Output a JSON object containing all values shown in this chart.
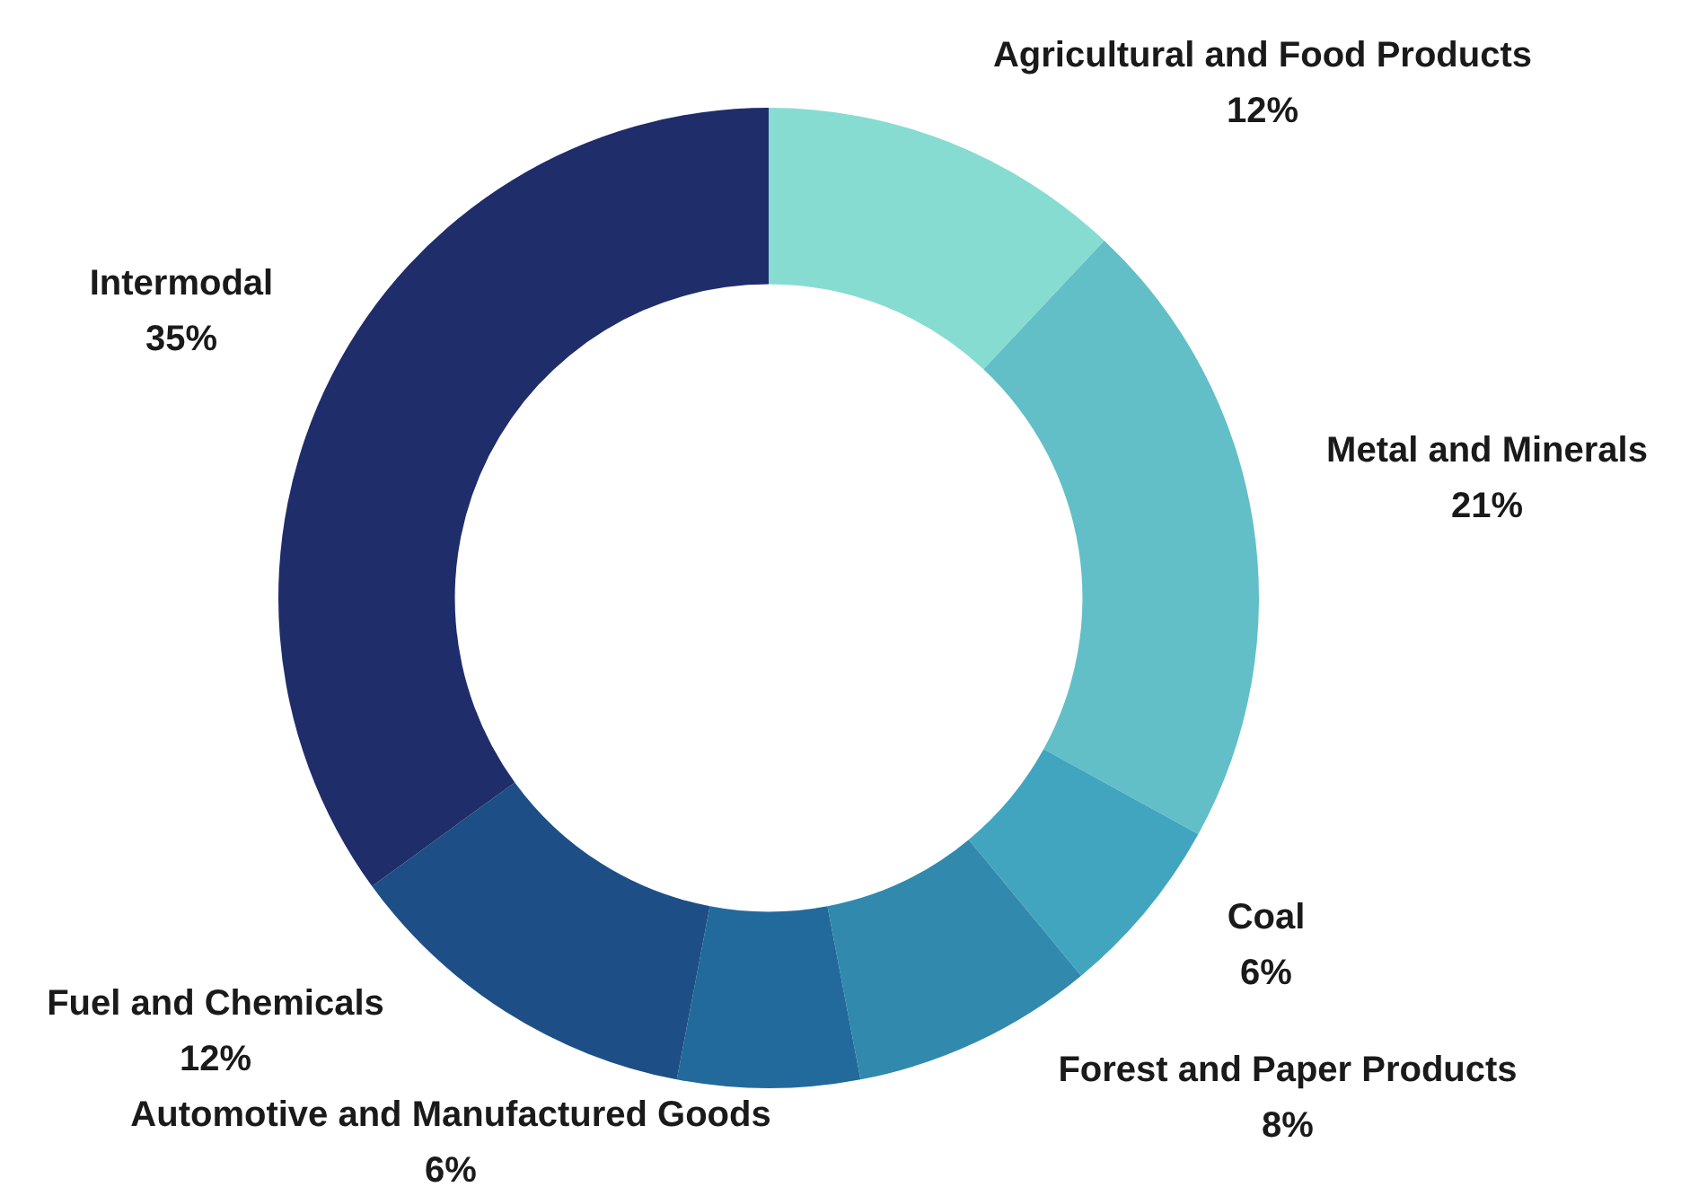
{
  "chart_data": {
    "type": "donut",
    "categories": [
      "Agricultural and Food Products",
      "Metal and Minerals",
      "Coal",
      "Forest and Paper Products",
      "Automotive and Manufactured Goods",
      "Fuel and Chemicals",
      "Intermodal"
    ],
    "values": [
      12,
      21,
      6,
      8,
      6,
      12,
      35
    ],
    "colors": [
      "#87dcd2",
      "#62bfc7",
      "#42a5c0",
      "#3189ae",
      "#226a9c",
      "#1d4f86",
      "#1f2d6a"
    ],
    "value_labels": [
      "12%",
      "21%",
      "6%",
      "8%",
      "6%",
      "12%",
      "35%"
    ],
    "legend": false
  }
}
